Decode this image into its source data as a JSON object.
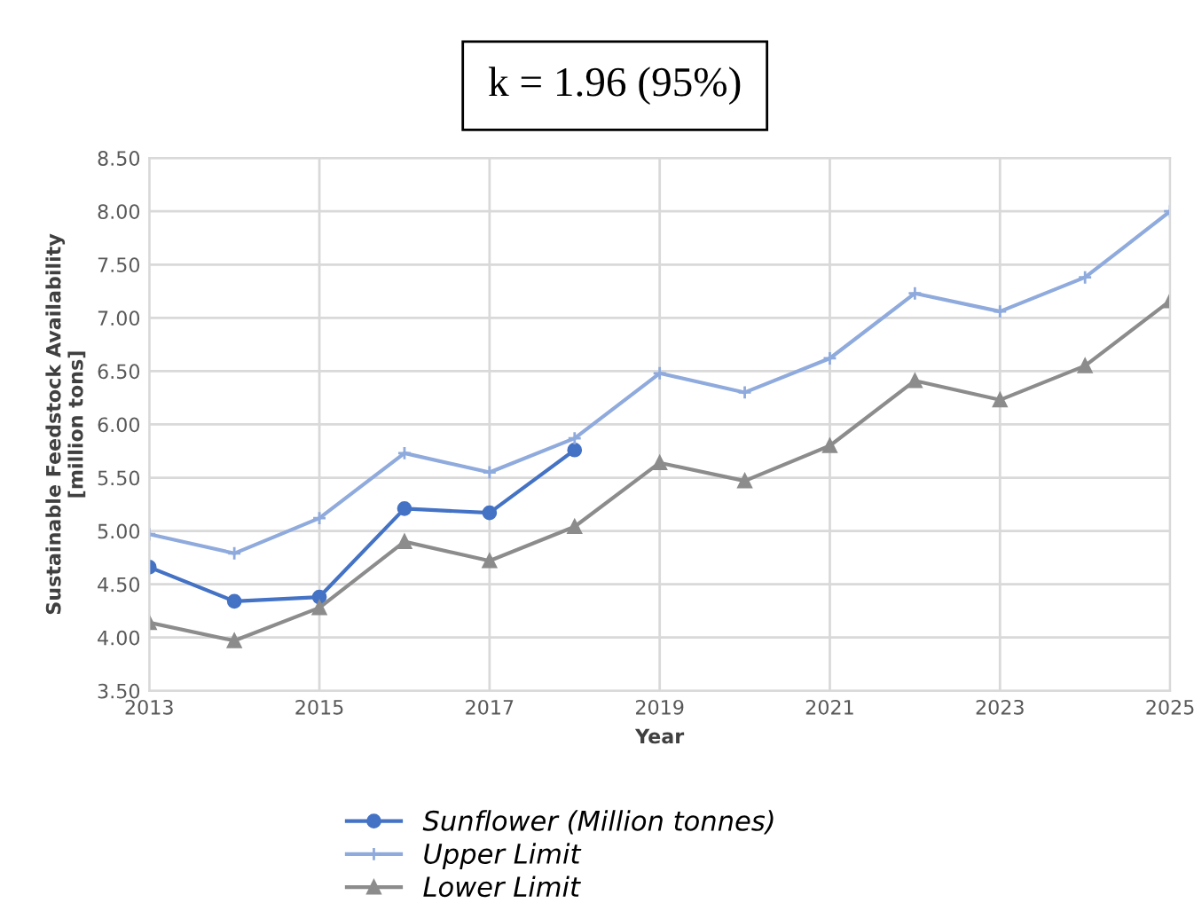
{
  "chart_data": {
    "type": "line",
    "title": "k = 1.96 (95%)",
    "xlabel": "Year",
    "ylabel": "Sustainable Feedstock Availability\n[million tons]",
    "x": [
      2013,
      2014,
      2015,
      2016,
      2017,
      2018,
      2019,
      2020,
      2021,
      2022,
      2023,
      2024,
      2025
    ],
    "series": [
      {
        "name": "Sunflower (Million tonnes)",
        "color": "#4472c4",
        "marker": "circle",
        "values": [
          4.66,
          4.34,
          4.38,
          5.21,
          5.17,
          5.76,
          null,
          null,
          null,
          null,
          null,
          null,
          null
        ]
      },
      {
        "name": "Upper Limit",
        "color": "#8faadc",
        "marker": "cross",
        "values": [
          4.97,
          4.79,
          5.12,
          5.73,
          5.55,
          5.87,
          6.48,
          6.3,
          6.62,
          7.23,
          7.06,
          7.38,
          8.0
        ]
      },
      {
        "name": "Lower Limit",
        "color": "#8c8c8c",
        "marker": "triangle",
        "values": [
          4.14,
          3.97,
          4.28,
          4.9,
          4.72,
          5.04,
          5.64,
          5.47,
          5.8,
          6.41,
          6.23,
          6.55,
          7.16
        ]
      }
    ],
    "xlim": [
      2013,
      2025
    ],
    "xticks": [
      2013,
      2015,
      2017,
      2019,
      2021,
      2023,
      2025
    ],
    "ylim": [
      3.5,
      8.5
    ],
    "yticks": [
      {
        "value": 3.5,
        "label": "3.50"
      },
      {
        "value": 4,
        "label": "4.00"
      },
      {
        "value": 4.5,
        "label": "4.50"
      },
      {
        "value": 5,
        "label": "5.00"
      },
      {
        "value": 5.5,
        "label": "5.50"
      },
      {
        "value": 6,
        "label": "6.00"
      },
      {
        "value": 6.5,
        "label": "6.50"
      },
      {
        "value": 7,
        "label": "7.00"
      },
      {
        "value": 7.5,
        "label": "7.50"
      },
      {
        "value": 8,
        "label": "8.00"
      },
      {
        "value": 8.5,
        "label": "8.50"
      }
    ],
    "grid": true,
    "legend": "bottom",
    "line_style": "solid"
  }
}
